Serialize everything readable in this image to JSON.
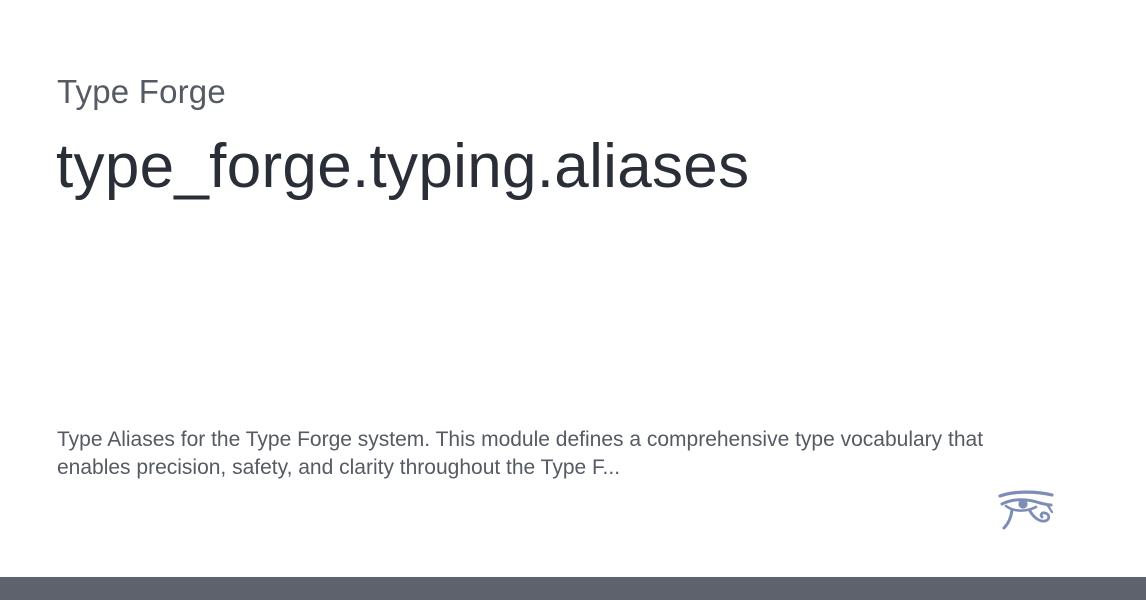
{
  "project": {
    "name": "Type Forge"
  },
  "module": {
    "title": "type_forge.typing.aliases"
  },
  "description": {
    "text": "Type Aliases for the Type Forge system. This module defines a comprehensive type vocabulary that enables precision, safety, and clarity throughout the Type F..."
  },
  "logo": {
    "icon": "eye-of-horus-icon",
    "color": "#7d8db5"
  },
  "footer": {
    "color": "#5d626c"
  }
}
